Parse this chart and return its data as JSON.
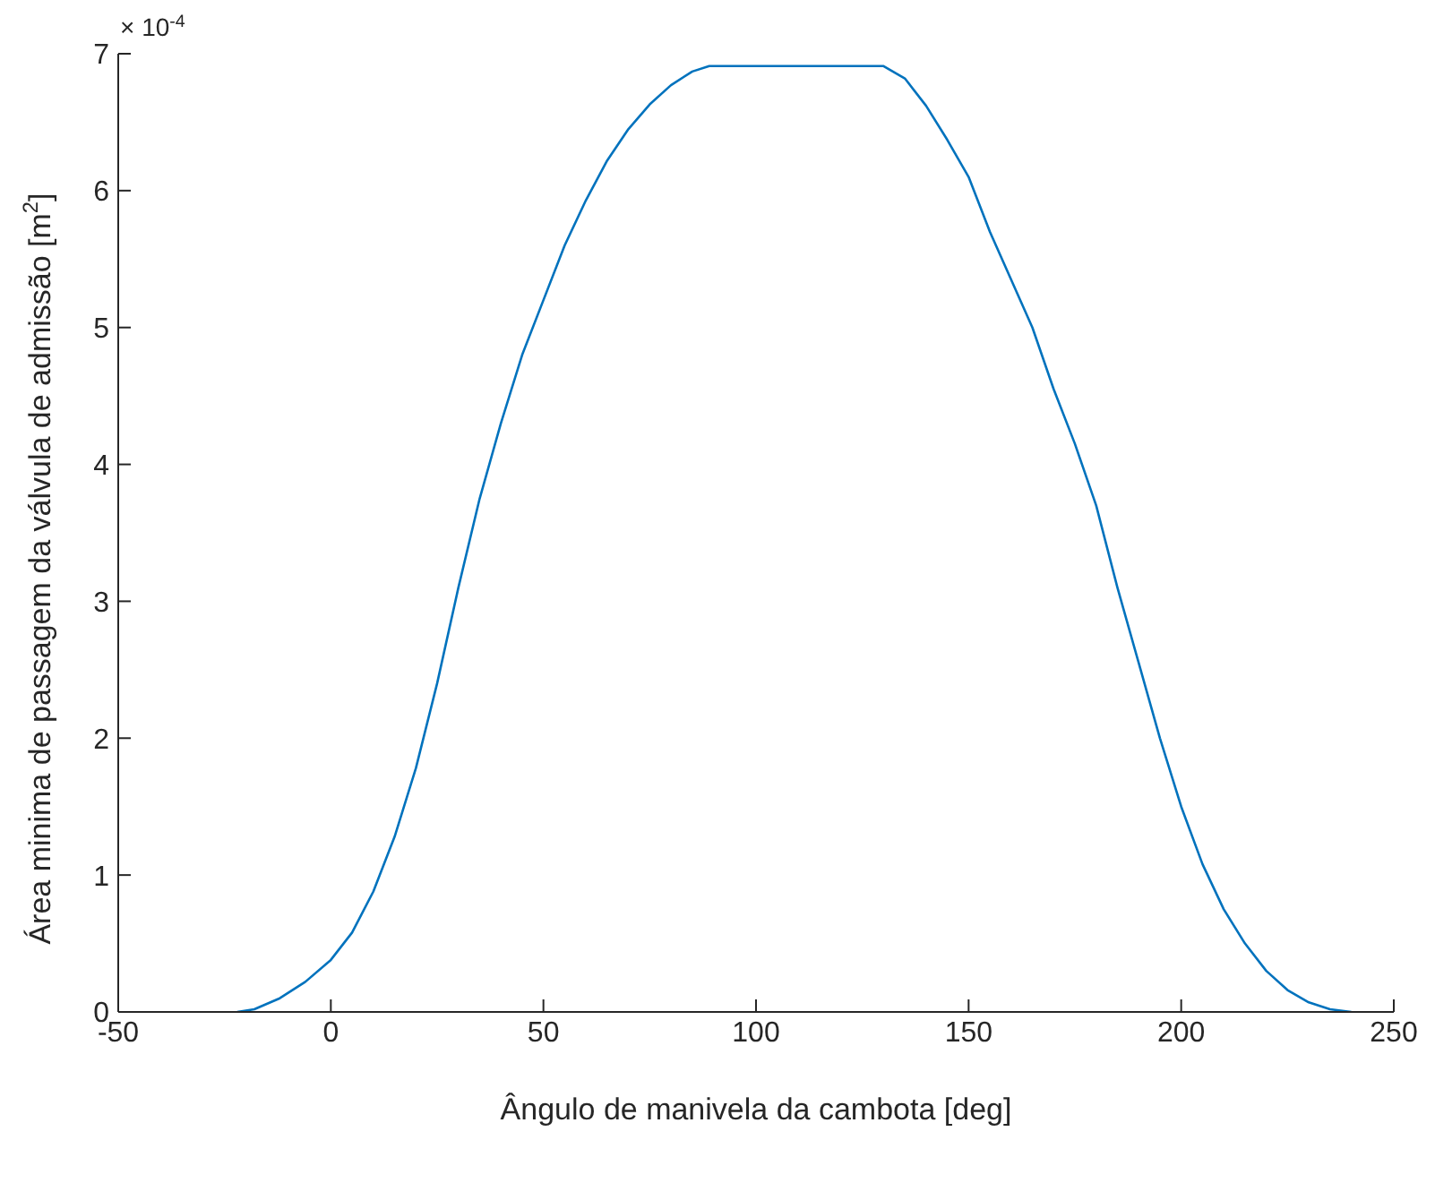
{
  "chart_data": {
    "type": "line",
    "xlabel": "Ângulo de manivela da cambota [deg]",
    "ylabel": "Área minima de passagem da válvula de admissão [m$^{2}$]",
    "annotations": [
      "× 10$^{-4}$"
    ],
    "x": [
      -22,
      -18,
      -12,
      -6,
      0,
      5,
      10,
      15,
      20,
      25,
      30,
      35,
      40,
      45,
      50,
      55,
      60,
      65,
      70,
      75,
      80,
      85,
      89,
      130,
      135,
      140,
      145,
      150,
      155,
      160,
      165,
      170,
      175,
      180,
      185,
      190,
      195,
      200,
      205,
      210,
      215,
      220,
      225,
      230,
      235,
      240
    ],
    "series": [
      {
        "color": "#0072bd",
        "values": [
          0,
          0.02,
          0.1,
          0.22,
          0.38,
          0.58,
          0.88,
          1.28,
          1.78,
          2.4,
          3.1,
          3.75,
          4.3,
          4.8,
          5.2,
          5.6,
          5.93,
          6.22,
          6.45,
          6.63,
          6.77,
          6.87,
          6.91,
          6.91,
          6.82,
          6.62,
          6.37,
          6.1,
          5.7,
          5.35,
          5.0,
          4.55,
          4.15,
          3.7,
          3.1,
          2.55,
          2.0,
          1.5,
          1.08,
          0.75,
          0.5,
          0.3,
          0.16,
          0.07,
          0.02,
          0
        ]
      }
    ],
    "xlim": [
      -50,
      250
    ],
    "xticks": [
      -50,
      0,
      50,
      100,
      150,
      200,
      250
    ],
    "ylim": [
      0,
      7
    ],
    "yticks": [
      0,
      1,
      2,
      3,
      4,
      5,
      6,
      7
    ],
    "marker": "none",
    "line_style": "solid"
  }
}
